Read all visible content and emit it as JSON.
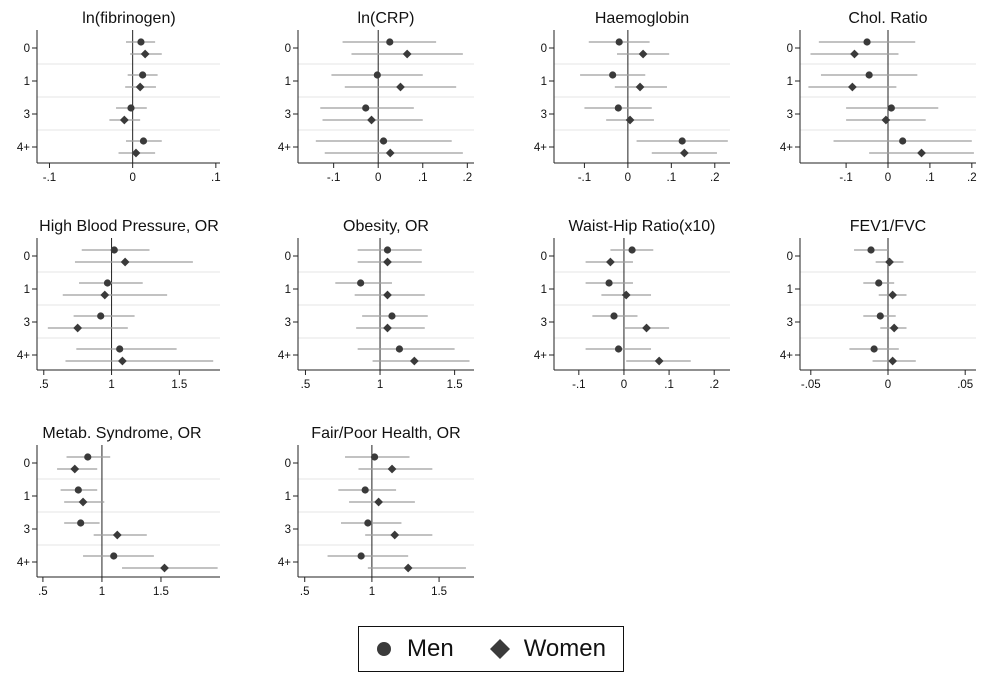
{
  "legend": {
    "men": "Men",
    "women": "Women"
  },
  "colors": {
    "marker": "#3a3a3a",
    "ci": "#9e9e9e",
    "axis": "#222222",
    "refline": "#222222",
    "band": "#e6e6e6"
  },
  "chart_data": [
    {
      "type": "scatter",
      "title": "ln(fibrinogen)",
      "categories": [
        "0",
        "1",
        "3",
        "4+"
      ],
      "xlim": [
        -0.115,
        0.105
      ],
      "xticks": [
        -0.1,
        0,
        0.1
      ],
      "xticklabels": [
        "-.1",
        "0",
        ".1"
      ],
      "refline": 0,
      "series": [
        {
          "name": "Men",
          "values": [
            0.01,
            0.012,
            -0.002,
            0.013
          ],
          "ci": [
            [
              -0.008,
              0.027
            ],
            [
              -0.006,
              0.03
            ],
            [
              -0.02,
              0.017
            ],
            [
              -0.008,
              0.035
            ]
          ]
        },
        {
          "name": "Women",
          "values": [
            0.015,
            0.009,
            -0.01,
            0.004
          ],
          "ci": [
            [
              -0.003,
              0.035
            ],
            [
              -0.009,
              0.028
            ],
            [
              -0.028,
              0.009
            ],
            [
              -0.017,
              0.027
            ]
          ]
        }
      ]
    },
    {
      "type": "scatter",
      "title": "ln(CRP)",
      "categories": [
        "0",
        "1",
        "3",
        "4+"
      ],
      "xlim": [
        -0.18,
        0.215
      ],
      "xticks": [
        -0.1,
        0,
        0.1,
        0.2
      ],
      "xticklabels": [
        "-.1",
        "0",
        ".1",
        ".2"
      ],
      "refline": 0,
      "series": [
        {
          "name": "Men",
          "values": [
            0.026,
            -0.002,
            -0.028,
            0.012
          ],
          "ci": [
            [
              -0.08,
              0.13
            ],
            [
              -0.105,
              0.1
            ],
            [
              -0.13,
              0.08
            ],
            [
              -0.14,
              0.165
            ]
          ]
        },
        {
          "name": "Women",
          "values": [
            0.065,
            0.05,
            -0.015,
            0.027
          ],
          "ci": [
            [
              -0.06,
              0.19
            ],
            [
              -0.075,
              0.175
            ],
            [
              -0.125,
              0.1
            ],
            [
              -0.12,
              0.19
            ]
          ]
        }
      ]
    },
    {
      "type": "scatter",
      "title": "Haemoglobin",
      "categories": [
        "0",
        "1",
        "3",
        "4+"
      ],
      "xlim": [
        -0.17,
        0.235
      ],
      "xticks": [
        -0.1,
        0,
        0.1,
        0.2
      ],
      "xticklabels": [
        "-.1",
        "0",
        ".1",
        ".2"
      ],
      "refline": 0,
      "series": [
        {
          "name": "Men",
          "values": [
            -0.02,
            -0.035,
            -0.022,
            0.125
          ],
          "ci": [
            [
              -0.09,
              0.05
            ],
            [
              -0.11,
              0.04
            ],
            [
              -0.1,
              0.055
            ],
            [
              0.02,
              0.23
            ]
          ]
        },
        {
          "name": "Women",
          "values": [
            0.035,
            0.028,
            0.005,
            0.13
          ],
          "ci": [
            [
              -0.025,
              0.095
            ],
            [
              -0.03,
              0.09
            ],
            [
              -0.05,
              0.06
            ],
            [
              0.055,
              0.205
            ]
          ]
        }
      ]
    },
    {
      "type": "scatter",
      "title": "Chol. Ratio",
      "categories": [
        "0",
        "1",
        "3",
        "4+"
      ],
      "xlim": [
        -0.21,
        0.21
      ],
      "xticks": [
        -0.1,
        0,
        0.1,
        0.2
      ],
      "xticklabels": [
        "-.1",
        "0",
        ".1",
        ".2"
      ],
      "refline": 0,
      "series": [
        {
          "name": "Men",
          "values": [
            -0.05,
            -0.045,
            0.008,
            0.035
          ],
          "ci": [
            [
              -0.165,
              0.065
            ],
            [
              -0.16,
              0.07
            ],
            [
              -0.1,
              0.12
            ],
            [
              -0.13,
              0.2
            ]
          ]
        },
        {
          "name": "Women",
          "values": [
            -0.08,
            -0.085,
            -0.005,
            0.08
          ],
          "ci": [
            [
              -0.185,
              0.025
            ],
            [
              -0.19,
              0.02
            ],
            [
              -0.1,
              0.09
            ],
            [
              -0.045,
              0.205
            ]
          ]
        }
      ]
    },
    {
      "type": "scatter",
      "title": "High Blood Pressure, OR",
      "categories": [
        "0",
        "1",
        "3",
        "4+"
      ],
      "xlim": [
        0.45,
        1.8
      ],
      "xticks": [
        0.5,
        1,
        1.5
      ],
      "xticklabels": [
        ".5",
        "1",
        "1.5"
      ],
      "refline": 1,
      "series": [
        {
          "name": "Men",
          "values": [
            1.02,
            0.97,
            0.92,
            1.06
          ],
          "ci": [
            [
              0.78,
              1.28
            ],
            [
              0.76,
              1.23
            ],
            [
              0.72,
              1.17
            ],
            [
              0.74,
              1.48
            ]
          ]
        },
        {
          "name": "Women",
          "values": [
            1.1,
            0.95,
            0.75,
            1.08
          ],
          "ci": [
            [
              0.73,
              1.6
            ],
            [
              0.64,
              1.41
            ],
            [
              0.53,
              1.12
            ],
            [
              0.66,
              1.75
            ]
          ]
        }
      ]
    },
    {
      "type": "scatter",
      "title": "Obesity, OR",
      "categories": [
        "0",
        "1",
        "3",
        "4+"
      ],
      "xlim": [
        0.45,
        1.63
      ],
      "xticks": [
        0.5,
        1,
        1.5
      ],
      "xticklabels": [
        ".5",
        "1",
        "1.5"
      ],
      "refline": 1,
      "series": [
        {
          "name": "Men",
          "values": [
            1.05,
            0.87,
            1.08,
            1.13
          ],
          "ci": [
            [
              0.85,
              1.28
            ],
            [
              0.7,
              1.08
            ],
            [
              0.88,
              1.32
            ],
            [
              0.85,
              1.5
            ]
          ]
        },
        {
          "name": "Women",
          "values": [
            1.05,
            1.05,
            1.05,
            1.23
          ],
          "ci": [
            [
              0.85,
              1.28
            ],
            [
              0.83,
              1.3
            ],
            [
              0.84,
              1.3
            ],
            [
              0.95,
              1.6
            ]
          ]
        }
      ]
    },
    {
      "type": "scatter",
      "title": "Waist-Hip Ratio(x10)",
      "categories": [
        "0",
        "1",
        "3",
        "4+"
      ],
      "xlim": [
        -0.155,
        0.235
      ],
      "xticks": [
        -0.1,
        0,
        0.1,
        0.2
      ],
      "xticklabels": [
        "-.1",
        "0",
        ".1",
        ".2"
      ],
      "refline": 0,
      "series": [
        {
          "name": "Men",
          "values": [
            0.018,
            -0.033,
            -0.022,
            -0.012
          ],
          "ci": [
            [
              -0.03,
              0.065
            ],
            [
              -0.085,
              0.02
            ],
            [
              -0.07,
              0.03
            ],
            [
              -0.085,
              0.06
            ]
          ]
        },
        {
          "name": "Women",
          "values": [
            -0.03,
            0.005,
            0.05,
            0.078
          ],
          "ci": [
            [
              -0.085,
              0.02
            ],
            [
              -0.05,
              0.06
            ],
            [
              0.0,
              0.1
            ],
            [
              0.005,
              0.148
            ]
          ]
        }
      ]
    },
    {
      "type": "scatter",
      "title": "FEV1/FVC",
      "categories": [
        "0",
        "1",
        "3",
        "4+"
      ],
      "xlim": [
        -0.057,
        0.057
      ],
      "xticks": [
        -0.05,
        0,
        0.05
      ],
      "xticklabels": [
        "-.05",
        "0",
        ".05"
      ],
      "refline": 0,
      "series": [
        {
          "name": "Men",
          "values": [
            -0.011,
            -0.006,
            -0.005,
            -0.009
          ],
          "ci": [
            [
              -0.022,
              0.0
            ],
            [
              -0.016,
              0.004
            ],
            [
              -0.016,
              0.005
            ],
            [
              -0.025,
              0.007
            ]
          ]
        },
        {
          "name": "Women",
          "values": [
            0.001,
            0.003,
            0.004,
            0.003
          ],
          "ci": [
            [
              -0.008,
              0.01
            ],
            [
              -0.006,
              0.012
            ],
            [
              -0.005,
              0.012
            ],
            [
              -0.01,
              0.018
            ]
          ]
        }
      ]
    },
    {
      "type": "scatter",
      "title": "Metab. Syndrome, OR",
      "categories": [
        "0",
        "1",
        "3",
        "4+"
      ],
      "xlim": [
        0.45,
        2.0
      ],
      "xticks": [
        0.5,
        1,
        1.5
      ],
      "xticklabels": [
        ".5",
        "1",
        "1.5"
      ],
      "refline": 1,
      "series": [
        {
          "name": "Men",
          "values": [
            0.88,
            0.8,
            0.82,
            1.1
          ],
          "ci": [
            [
              0.7,
              1.07
            ],
            [
              0.65,
              0.96
            ],
            [
              0.68,
              0.98
            ],
            [
              0.84,
              1.44
            ]
          ]
        },
        {
          "name": "Women",
          "values": [
            0.77,
            0.84,
            1.13,
            1.53
          ],
          "ci": [
            [
              0.62,
              0.96
            ],
            [
              0.68,
              1.02
            ],
            [
              0.93,
              1.38
            ],
            [
              1.17,
              1.98
            ]
          ]
        }
      ]
    },
    {
      "type": "scatter",
      "title": "Fair/Poor Health, OR",
      "categories": [
        "0",
        "1",
        "3",
        "4+"
      ],
      "xlim": [
        0.45,
        1.76
      ],
      "xticks": [
        0.5,
        1,
        1.5
      ],
      "xticklabels": [
        ".5",
        "1",
        "1.5"
      ],
      "refline": 1,
      "series": [
        {
          "name": "Men",
          "values": [
            1.02,
            0.95,
            0.97,
            0.92
          ],
          "ci": [
            [
              0.8,
              1.28
            ],
            [
              0.75,
              1.18
            ],
            [
              0.77,
              1.22
            ],
            [
              0.67,
              1.27
            ]
          ]
        },
        {
          "name": "Women",
          "values": [
            1.15,
            1.05,
            1.17,
            1.27
          ],
          "ci": [
            [
              0.9,
              1.45
            ],
            [
              0.83,
              1.32
            ],
            [
              0.95,
              1.45
            ],
            [
              0.97,
              1.7
            ]
          ]
        }
      ]
    }
  ]
}
